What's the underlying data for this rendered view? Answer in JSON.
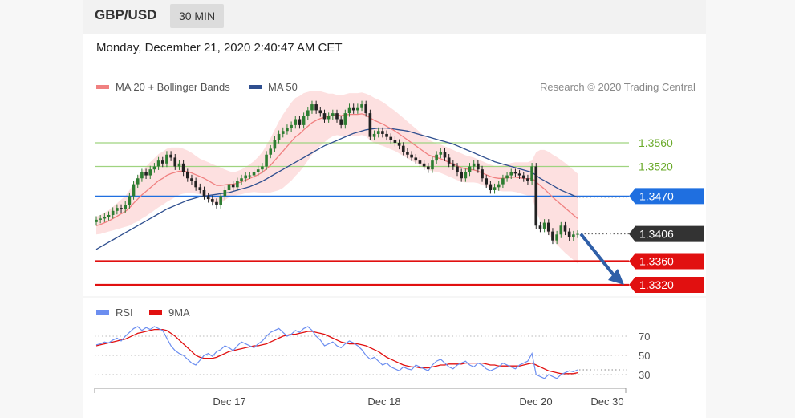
{
  "header": {
    "symbol": "GBP/USD",
    "timeframe": "30 MIN"
  },
  "timestamp": "Monday, December 21, 2020 2:40:47 AM CET",
  "legend": {
    "ma20_label": "MA 20 + Bollinger Bands",
    "ma50_label": "MA 50",
    "rsi_label": "RSI",
    "rsi_ma_label": "9MA"
  },
  "credit": "Research © 2020 Trading Central",
  "colors": {
    "ma20": "#f08080",
    "ma50": "#2f4f8f",
    "band": "#fcd6d6",
    "candle_up": "#2e7d32",
    "candle_down": "#222222",
    "resistance": "#9fd37f",
    "pivot": "#1f6fe0",
    "support": "#e11010",
    "current": "#333333",
    "rsi": "#6c8ef0",
    "rsi_ma": "#e11010",
    "arrow": "#2f5fa8"
  },
  "chart_data": [
    {
      "type": "candlestick",
      "title": "GBP/USD",
      "timeframe": "30 MIN",
      "ylim": [
        1.325,
        1.367
      ],
      "x_ticks": [
        "Dec 17",
        "Dec 18",
        "Dec 20",
        "Dec 30"
      ],
      "levels": [
        {
          "value": 1.356,
          "label": "1.3560",
          "kind": "resistance"
        },
        {
          "value": 1.352,
          "label": "1.3520",
          "kind": "resistance"
        },
        {
          "value": 1.347,
          "label": "1.3470",
          "kind": "pivot"
        },
        {
          "value": 1.3406,
          "label": "1.3406",
          "kind": "current"
        },
        {
          "value": 1.336,
          "label": "1.3360",
          "kind": "support"
        },
        {
          "value": 1.332,
          "label": "1.3320",
          "kind": "support"
        }
      ],
      "close": [
        1.343,
        1.3432,
        1.3435,
        1.3438,
        1.3445,
        1.345,
        1.3448,
        1.3455,
        1.347,
        1.349,
        1.35,
        1.351,
        1.3505,
        1.3515,
        1.352,
        1.353,
        1.3525,
        1.354,
        1.3535,
        1.352,
        1.3525,
        1.351,
        1.35,
        1.3495,
        1.3485,
        1.348,
        1.347,
        1.3465,
        1.346,
        1.3455,
        1.347,
        1.348,
        1.349,
        1.3485,
        1.3495,
        1.35,
        1.3505,
        1.3505,
        1.351,
        1.3515,
        1.352,
        1.354,
        1.355,
        1.3565,
        1.3575,
        1.358,
        1.3585,
        1.359,
        1.36,
        1.359,
        1.3605,
        1.3615,
        1.3625,
        1.3615,
        1.361,
        1.36,
        1.3605,
        1.361,
        1.36,
        1.359,
        1.361,
        1.362,
        1.3615,
        1.362,
        1.3625,
        1.361,
        1.357,
        1.3575,
        1.358,
        1.3575,
        1.357,
        1.3565,
        1.356,
        1.3555,
        1.3545,
        1.354,
        1.3535,
        1.353,
        1.3525,
        1.352,
        1.3515,
        1.353,
        1.354,
        1.3545,
        1.3535,
        1.3525,
        1.352,
        1.351,
        1.35,
        1.351,
        1.352,
        1.3525,
        1.3515,
        1.35,
        1.349,
        1.348,
        1.3485,
        1.349,
        1.35,
        1.3505,
        1.351,
        1.3508,
        1.3505,
        1.35,
        1.3495,
        1.352,
        1.342,
        1.3415,
        1.3425,
        1.341,
        1.3395,
        1.3405,
        1.342,
        1.341,
        1.34,
        1.3405,
        1.3406
      ],
      "ma20": [
        1.342,
        1.3422,
        1.3425,
        1.3428,
        1.3432,
        1.3436,
        1.344,
        1.3444,
        1.345,
        1.3458,
        1.3465,
        1.3472,
        1.3478,
        1.3484,
        1.349,
        1.3496,
        1.35,
        1.3505,
        1.3508,
        1.351,
        1.3512,
        1.3512,
        1.3511,
        1.3509,
        1.3506,
        1.3503,
        1.35,
        1.3496,
        1.3492,
        1.3488,
        1.3488,
        1.3489,
        1.349,
        1.349,
        1.3492,
        1.3494,
        1.3497,
        1.35,
        1.3503,
        1.3506,
        1.351,
        1.3516,
        1.3522,
        1.353,
        1.3538,
        1.3546,
        1.3554,
        1.3562,
        1.357,
        1.3575,
        1.3582,
        1.3588,
        1.3594,
        1.3598,
        1.3601,
        1.3603,
        1.3605,
        1.3607,
        1.3607,
        1.3606,
        1.3607,
        1.3608,
        1.3608,
        1.3608,
        1.3609,
        1.3607,
        1.3602,
        1.3598,
        1.3595,
        1.3592,
        1.3588,
        1.3584,
        1.358,
        1.3575,
        1.357,
        1.3565,
        1.356,
        1.3555,
        1.355,
        1.3545,
        1.354,
        1.3537,
        1.3535,
        1.3533,
        1.353,
        1.3527,
        1.3524,
        1.3521,
        1.3518,
        1.3516,
        1.3515,
        1.3514,
        1.3512,
        1.3509,
        1.3506,
        1.3503,
        1.3501,
        1.35,
        1.35,
        1.3501,
        1.3502,
        1.3502,
        1.3501,
        1.35,
        1.3499,
        1.35,
        1.3494,
        1.3488,
        1.3482,
        1.3475,
        1.3468,
        1.3462,
        1.3456,
        1.345,
        1.3444,
        1.3438,
        1.3432
      ],
      "band_width": [
        0.0015,
        0.0016,
        0.0017,
        0.0018,
        0.002,
        0.0022,
        0.0024,
        0.0026,
        0.003,
        0.0034,
        0.0038,
        0.004,
        0.0042,
        0.0043,
        0.0044,
        0.0045,
        0.0045,
        0.0045,
        0.0044,
        0.0042,
        0.004,
        0.0038,
        0.0036,
        0.0034,
        0.0032,
        0.003,
        0.003,
        0.0031,
        0.0032,
        0.0033,
        0.003,
        0.0026,
        0.0022,
        0.002,
        0.002,
        0.0021,
        0.0022,
        0.0024,
        0.0026,
        0.003,
        0.0034,
        0.004,
        0.0046,
        0.0052,
        0.0058,
        0.0062,
        0.0064,
        0.0066,
        0.0066,
        0.0064,
        0.0062,
        0.0058,
        0.0054,
        0.005,
        0.0046,
        0.0042,
        0.0038,
        0.0036,
        0.0034,
        0.0034,
        0.0035,
        0.0036,
        0.0036,
        0.0036,
        0.0036,
        0.0036,
        0.0038,
        0.0038,
        0.0038,
        0.0037,
        0.0036,
        0.0035,
        0.0034,
        0.0033,
        0.0032,
        0.0031,
        0.003,
        0.0029,
        0.0028,
        0.0027,
        0.0026,
        0.0025,
        0.0024,
        0.0024,
        0.0024,
        0.0024,
        0.0024,
        0.0024,
        0.0024,
        0.0023,
        0.0022,
        0.0021,
        0.002,
        0.002,
        0.002,
        0.002,
        0.002,
        0.0021,
        0.0022,
        0.0023,
        0.0024,
        0.0025,
        0.0026,
        0.0027,
        0.0028,
        0.003,
        0.005,
        0.006,
        0.0066,
        0.007,
        0.0072,
        0.0074,
        0.0075,
        0.0076,
        0.0076,
        0.0076,
        0.0076
      ],
      "ma50": [
        1.338,
        1.3384,
        1.3388,
        1.3392,
        1.3396,
        1.34,
        1.3404,
        1.3408,
        1.3412,
        1.3416,
        1.342,
        1.3424,
        1.3428,
        1.3432,
        1.3436,
        1.344,
        1.3444,
        1.3448,
        1.3451,
        1.3454,
        1.3457,
        1.346,
        1.3463,
        1.3465,
        1.3467,
        1.3469,
        1.347,
        1.3471,
        1.3472,
        1.3473,
        1.3474,
        1.3475,
        1.3476,
        1.3478,
        1.348,
        1.3482,
        1.3484,
        1.3486,
        1.3489,
        1.3492,
        1.3495,
        1.3499,
        1.3503,
        1.3507,
        1.3511,
        1.3515,
        1.3519,
        1.3523,
        1.3527,
        1.3531,
        1.3535,
        1.3539,
        1.3543,
        1.3547,
        1.3551,
        1.3555,
        1.3558,
        1.3561,
        1.3564,
        1.3567,
        1.357,
        1.3573,
        1.3576,
        1.3578,
        1.358,
        1.3582,
        1.3583,
        1.3584,
        1.3585,
        1.3585,
        1.3585,
        1.3584,
        1.3583,
        1.3582,
        1.3581,
        1.358,
        1.3578,
        1.3576,
        1.3574,
        1.3572,
        1.357,
        1.3568,
        1.3566,
        1.3564,
        1.3562,
        1.356,
        1.3558,
        1.3555,
        1.3552,
        1.3549,
        1.3546,
        1.3543,
        1.354,
        1.3537,
        1.3534,
        1.3531,
        1.3528,
        1.3526,
        1.3524,
        1.3522,
        1.352,
        1.3518,
        1.3516,
        1.3514,
        1.3512,
        1.351,
        1.3505,
        1.35,
        1.3496,
        1.3492,
        1.3488,
        1.3484,
        1.348,
        1.3477,
        1.3474,
        1.3471,
        1.3468
      ]
    },
    {
      "type": "line",
      "title": "RSI",
      "ylim": [
        20,
        82
      ],
      "y_ticks": [
        70,
        50,
        30
      ],
      "series": [
        {
          "name": "RSI",
          "values": [
            61,
            62,
            64,
            63,
            66,
            68,
            65,
            70,
            74,
            78,
            80,
            76,
            79,
            77,
            80,
            78,
            76,
            68,
            60,
            55,
            52,
            50,
            46,
            42,
            40,
            45,
            50,
            52,
            49,
            54,
            56,
            60,
            58,
            55,
            60,
            64,
            62,
            60,
            58,
            62,
            65,
            70,
            74,
            76,
            78,
            74,
            70,
            72,
            76,
            74,
            78,
            80,
            76,
            70,
            66,
            60,
            62,
            64,
            60,
            58,
            62,
            65,
            63,
            60,
            56,
            50,
            46,
            48,
            44,
            40,
            42,
            38,
            36,
            34,
            38,
            36,
            35,
            40,
            38,
            36,
            34,
            40,
            44,
            46,
            42,
            38,
            36,
            40,
            42,
            44,
            40,
            38,
            42,
            40,
            36,
            34,
            36,
            38,
            42,
            40,
            38,
            36,
            40,
            42,
            44,
            52,
            30,
            28,
            26,
            30,
            28,
            26,
            30,
            32,
            34,
            33,
            35
          ]
        },
        {
          "name": "9MA",
          "values": [
            60,
            61,
            62,
            63,
            64,
            65,
            66,
            67,
            69,
            71,
            73,
            74,
            75,
            76,
            77,
            77,
            77,
            76,
            73,
            70,
            66,
            62,
            58,
            54,
            50,
            48,
            47,
            47,
            47,
            48,
            50,
            52,
            54,
            55,
            56,
            57,
            58,
            59,
            60,
            60,
            61,
            62,
            64,
            66,
            68,
            70,
            71,
            72,
            72,
            73,
            74,
            75,
            75,
            74,
            73,
            72,
            70,
            68,
            66,
            64,
            63,
            62,
            62,
            62,
            61,
            60,
            58,
            56,
            54,
            51,
            48,
            46,
            44,
            42,
            40,
            39,
            38,
            38,
            37,
            37,
            37,
            38,
            39,
            40,
            40,
            41,
            41,
            41,
            41,
            42,
            42,
            42,
            42,
            42,
            41,
            40,
            40,
            39,
            39,
            39,
            39,
            39,
            39,
            40,
            41,
            42,
            40,
            38,
            36,
            34,
            33,
            32,
            31,
            31,
            31,
            31,
            32
          ]
        }
      ]
    }
  ]
}
